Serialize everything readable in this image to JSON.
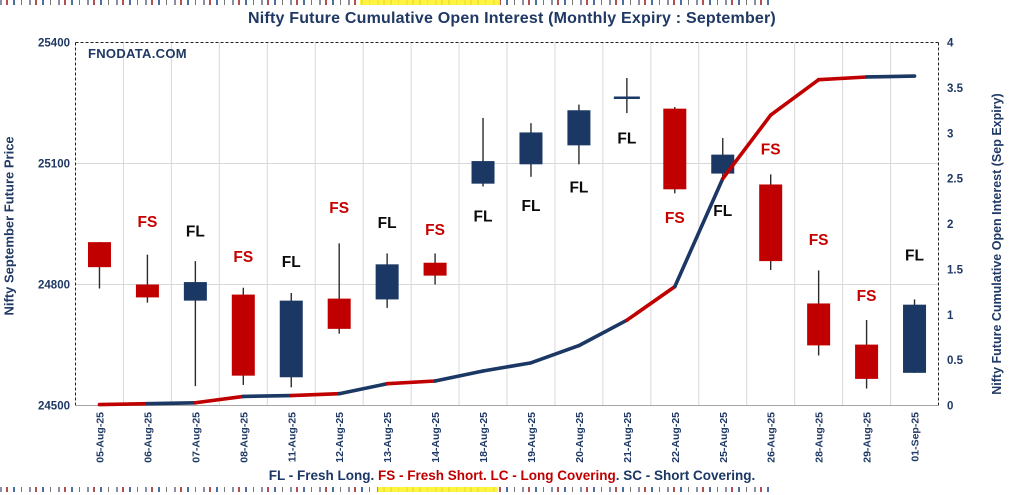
{
  "window": {
    "name": "nifty-oi-chart"
  },
  "colors": {
    "red": "#C00000",
    "navy": "#1B3764",
    "label_red": "#C80000",
    "label_black": "#0A0A0A",
    "axis_text": "#1F3864",
    "grid": "#D8D8D8",
    "wick": "#2B2B2B",
    "border": "#222222",
    "baseline": "#A6A6A6",
    "highlight_yellow": "#FFF32B"
  },
  "chart_data": {
    "type": "candlestick+line",
    "title": "Nifty Future Cumulative Open Interest (Monthly Expiry : September)",
    "watermark": "FNODATA.COM",
    "legend_parts": [
      {
        "text": "FL - Fresh Long. ",
        "color": "navy"
      },
      {
        "text": "FS - Fresh Short. ",
        "color": "red"
      },
      {
        "text": "LC - Long Covering",
        "color": "red"
      },
      {
        "text": ". ",
        "color": "navy"
      },
      {
        "text": "SC - Short Covering.",
        "color": "navy"
      }
    ],
    "price_axis": {
      "title": "Nifty September Future Price",
      "min": 24500,
      "max": 25400,
      "ticks": [
        {
          "label": "25400",
          "value": 25400
        },
        {
          "label": "25100",
          "value": 25100
        },
        {
          "label": "24800",
          "value": 24800
        },
        {
          "label": "24500",
          "value": 24500
        }
      ]
    },
    "oi_axis": {
      "title": "Nifty Future Cumulative Open Interest (Sep Expiry)",
      "min": 0,
      "max": 4,
      "ticks": [
        {
          "label": "4",
          "value": 4
        },
        {
          "label": "3.5",
          "value": 3.5
        },
        {
          "label": "3",
          "value": 3
        },
        {
          "label": "2.5",
          "value": 2.5
        },
        {
          "label": "2",
          "value": 2
        },
        {
          "label": "1.5",
          "value": 1.5
        },
        {
          "label": "1",
          "value": 1
        },
        {
          "label": "0.5",
          "value": 0.5
        },
        {
          "label": "0",
          "value": 0
        }
      ]
    },
    "categories": [
      "05-Aug-25",
      "06-Aug-25",
      "07-Aug-25",
      "08-Aug-25",
      "11-Aug-25",
      "12-Aug-25",
      "13-Aug-25",
      "14-Aug-25",
      "18-Aug-25",
      "19-Aug-25",
      "20-Aug-25",
      "21-Aug-25",
      "22-Aug-25",
      "25-Aug-25",
      "26-Aug-25",
      "28-Aug-25",
      "29-Aug-25",
      "01-Sep-25"
    ],
    "candles": [
      {
        "date": "05-Aug-25",
        "open": 24905,
        "high": 24905,
        "low": 24790,
        "close": 24843,
        "color": "red",
        "doji": false,
        "label": null
      },
      {
        "date": "06-Aug-25",
        "open": 24800,
        "high": 24874,
        "low": 24755,
        "close": 24768,
        "color": "red",
        "doji": false,
        "label": {
          "text": "FS",
          "color": "label_red",
          "price": 24955
        }
      },
      {
        "date": "07-Aug-25",
        "open": 24760,
        "high": 24858,
        "low": 24548,
        "close": 24806,
        "color": "navy",
        "doji": false,
        "label": {
          "text": "FL",
          "color": "label_black",
          "price": 24932
        }
      },
      {
        "date": "08-Aug-25",
        "open": 24775,
        "high": 24792,
        "low": 24551,
        "close": 24574,
        "color": "red",
        "doji": false,
        "label": {
          "text": "FS",
          "color": "label_red",
          "price": 24868
        }
      },
      {
        "date": "11-Aug-25",
        "open": 24570,
        "high": 24779,
        "low": 24545,
        "close": 24760,
        "color": "navy",
        "doji": false,
        "label": {
          "text": "FL",
          "color": "label_black",
          "price": 24856
        }
      },
      {
        "date": "12-Aug-25",
        "open": 24765,
        "high": 24902,
        "low": 24678,
        "close": 24690,
        "color": "red",
        "doji": false,
        "label": {
          "text": "FS",
          "color": "label_red",
          "price": 24990
        }
      },
      {
        "date": "13-Aug-25",
        "open": 24763,
        "high": 24877,
        "low": 24742,
        "close": 24850,
        "color": "navy",
        "doji": false,
        "label": {
          "text": "FL",
          "color": "label_black",
          "price": 24952
        }
      },
      {
        "date": "14-Aug-25",
        "open": 24854,
        "high": 24877,
        "low": 24800,
        "close": 24822,
        "color": "red",
        "doji": false,
        "label": {
          "text": "FS",
          "color": "label_red",
          "price": 24935
        }
      },
      {
        "date": "18-Aug-25",
        "open": 25050,
        "high": 25213,
        "low": 25043,
        "close": 25106,
        "color": "navy",
        "doji": false,
        "label": {
          "text": "FL",
          "color": "label_black",
          "price": 24968
        }
      },
      {
        "date": "19-Aug-25",
        "open": 25098,
        "high": 25200,
        "low": 25067,
        "close": 25177,
        "color": "navy",
        "doji": false,
        "label": {
          "text": "FL",
          "color": "label_black",
          "price": 24995
        }
      },
      {
        "date": "20-Aug-25",
        "open": 25145,
        "high": 25246,
        "low": 25098,
        "close": 25232,
        "color": "navy",
        "doji": false,
        "label": {
          "text": "FL",
          "color": "label_black",
          "price": 25040
        }
      },
      {
        "date": "21-Aug-25",
        "open": 25261,
        "high": 25312,
        "low": 25225,
        "close": 25263,
        "color": "navy",
        "doji": true,
        "label": {
          "text": "FL",
          "color": "label_black",
          "price": 25162
        }
      },
      {
        "date": "22-Aug-25",
        "open": 25236,
        "high": 25240,
        "low": 25026,
        "close": 25036,
        "color": "red",
        "doji": false,
        "label": {
          "text": "FS",
          "color": "label_red",
          "price": 24965
        }
      },
      {
        "date": "25-Aug-25",
        "open": 25075,
        "high": 25163,
        "low": 25062,
        "close": 25122,
        "color": "navy",
        "doji": false,
        "label": {
          "text": "FL",
          "color": "label_black",
          "price": 24982
        }
      },
      {
        "date": "26-Aug-25",
        "open": 25048,
        "high": 25073,
        "low": 24836,
        "close": 24858,
        "color": "red",
        "doji": false,
        "label": {
          "text": "FS",
          "color": "label_red",
          "price": 25135
        }
      },
      {
        "date": "28-Aug-25",
        "open": 24753,
        "high": 24835,
        "low": 24624,
        "close": 24649,
        "color": "red",
        "doji": false,
        "label": {
          "text": "FS",
          "color": "label_red",
          "price": 24910
        }
      },
      {
        "date": "29-Aug-25",
        "open": 24651,
        "high": 24712,
        "low": 24542,
        "close": 24566,
        "color": "red",
        "doji": false,
        "label": {
          "text": "FS",
          "color": "label_red",
          "price": 24772
        }
      },
      {
        "date": "01-Sep-25",
        "open": 24581,
        "high": 24763,
        "low": 24581,
        "close": 24750,
        "color": "navy",
        "doji": false,
        "label": {
          "text": "FL",
          "color": "label_black",
          "price": 24872
        }
      }
    ],
    "oi_line": {
      "values": [
        0.01,
        0.02,
        0.03,
        0.1,
        0.11,
        0.13,
        0.24,
        0.27,
        0.38,
        0.47,
        0.66,
        0.94,
        1.31,
        2.5,
        3.2,
        3.59,
        3.62,
        3.63
      ],
      "segment_colors": [
        "red",
        "navy",
        "red",
        "navy",
        "red",
        "navy",
        "red",
        "navy",
        "navy",
        "navy",
        "navy",
        "red",
        "navy",
        "red",
        "red",
        "red",
        "navy"
      ]
    }
  }
}
